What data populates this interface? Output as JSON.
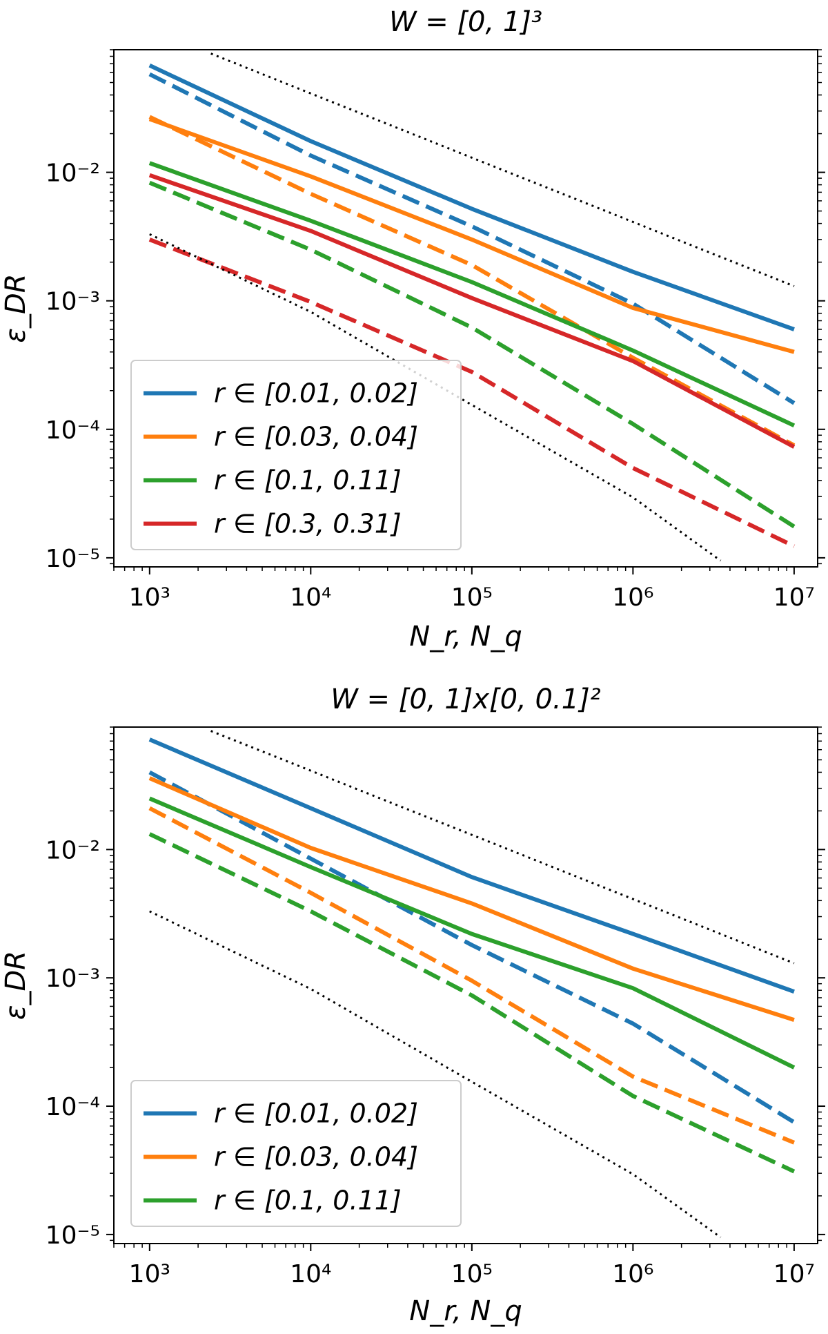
{
  "charts": [
    {
      "title": "W = [0, 1]³",
      "xlabel": "N_r, N_q",
      "ylabel": "ε_DR",
      "legend": [
        {
          "label": "r ∈ [0.01, 0.02]",
          "color": "#1f77b4"
        },
        {
          "label": "r ∈ [0.03, 0.04]",
          "color": "#ff7f0e"
        },
        {
          "label": "r ∈ [0.1, 0.11]",
          "color": "#2ca02c"
        },
        {
          "label": "r ∈ [0.3, 0.31]",
          "color": "#d62728"
        }
      ]
    },
    {
      "title": "W = [0, 1]x[0, 0.1]²",
      "xlabel": "N_r, N_q",
      "ylabel": "ε_DR",
      "legend": [
        {
          "label": "r ∈ [0.01, 0.02]",
          "color": "#1f77b4"
        },
        {
          "label": "r ∈ [0.03, 0.04]",
          "color": "#ff7f0e"
        },
        {
          "label": "r ∈ [0.1, 0.11]",
          "color": "#2ca02c"
        }
      ]
    }
  ],
  "chart_data": [
    {
      "type": "line",
      "scale": "log-log",
      "title": "W = [0, 1]³",
      "xlabel": "N_r, N_q",
      "ylabel": "ε_DR",
      "xlim": [
        600,
        14000000
      ],
      "ylim": [
        8.5e-06,
        0.09
      ],
      "xticks": [
        1000,
        10000,
        100000,
        1000000,
        10000000
      ],
      "xtick_labels": [
        "10^3",
        "10^4",
        "10^5",
        "10^6",
        "10^7"
      ],
      "yticks": [
        1e-05,
        0.0001,
        0.001,
        0.01
      ],
      "ytick_labels": [
        "10^-5",
        "10^-4",
        "10^-3",
        "10^-2"
      ],
      "x": [
        1000,
        10000,
        100000,
        1000000,
        10000000
      ],
      "series": [
        {
          "name": "r ∈ [0.01, 0.02] (solid)",
          "color": "#1f77b4",
          "dash": "solid",
          "values": [
            0.068,
            0.0175,
            0.0052,
            0.00168,
            0.0006
          ]
        },
        {
          "name": "r ∈ [0.01, 0.02] (dashed)",
          "color": "#1f77b4",
          "dash": "dashed",
          "values": [
            0.058,
            0.0135,
            0.0038,
            0.00095,
            0.00016
          ]
        },
        {
          "name": "r ∈ [0.03, 0.04] (solid)",
          "color": "#ff7f0e",
          "dash": "solid",
          "values": [
            0.026,
            0.0093,
            0.003,
            0.00088,
            0.0004
          ]
        },
        {
          "name": "r ∈ [0.03, 0.04] (dashed)",
          "color": "#ff7f0e",
          "dash": "dashed",
          "values": [
            0.027,
            0.0068,
            0.0019,
            0.00036,
            7.5e-05
          ]
        },
        {
          "name": "r ∈ [0.1, 0.11] (solid)",
          "color": "#2ca02c",
          "dash": "solid",
          "values": [
            0.0118,
            0.0042,
            0.0014,
            0.00041,
            0.000107
          ]
        },
        {
          "name": "r ∈ [0.1, 0.11] (dashed)",
          "color": "#2ca02c",
          "dash": "dashed",
          "values": [
            0.0083,
            0.0025,
            0.00062,
            0.00011,
            1.75e-05
          ]
        },
        {
          "name": "r ∈ [0.3, 0.31] (solid)",
          "color": "#d62728",
          "dash": "solid",
          "values": [
            0.0095,
            0.0035,
            0.00105,
            0.00034,
            7.3e-05
          ]
        },
        {
          "name": "r ∈ [0.3, 0.31] (dashed)",
          "color": "#d62728",
          "dash": "dashed",
          "values": [
            0.003,
            0.00098,
            0.00028,
            5e-05,
            1.23e-05
          ]
        },
        {
          "name": "reference slope -1/2",
          "color": "#000000",
          "dash": "dotted",
          "x": [
            2400,
            10000000
          ],
          "values": [
            0.084,
            0.0013
          ]
        },
        {
          "name": "reference slope -1",
          "color": "#000000",
          "dash": "dotted",
          "x": [
            1000,
            10000,
            100000,
            1000000,
            3500000
          ],
          "values": [
            0.0033,
            0.00082,
            0.000155,
            2.95e-05,
            9.5e-06
          ]
        }
      ],
      "legend_position": "lower-left"
    },
    {
      "type": "line",
      "scale": "log-log",
      "title": "W = [0, 1]x[0, 0.1]²",
      "xlabel": "N_r, N_q",
      "ylabel": "ε_DR",
      "xlim": [
        600,
        14000000
      ],
      "ylim": [
        8.5e-06,
        0.09
      ],
      "xticks": [
        1000,
        10000,
        100000,
        1000000,
        10000000
      ],
      "xtick_labels": [
        "10^3",
        "10^4",
        "10^5",
        "10^6",
        "10^7"
      ],
      "yticks": [
        1e-05,
        0.0001,
        0.001,
        0.01
      ],
      "ytick_labels": [
        "10^-5",
        "10^-4",
        "10^-3",
        "10^-2"
      ],
      "x": [
        1000,
        10000,
        100000,
        1000000,
        10000000
      ],
      "series": [
        {
          "name": "r ∈ [0.01, 0.02] (solid)",
          "color": "#1f77b4",
          "dash": "solid",
          "values": [
            0.072,
            0.021,
            0.0061,
            0.0022,
            0.00078
          ]
        },
        {
          "name": "r ∈ [0.01, 0.02] (dashed)",
          "color": "#1f77b4",
          "dash": "dashed",
          "values": [
            0.04,
            0.0085,
            0.0018,
            0.00044,
            7.5e-05
          ]
        },
        {
          "name": "r ∈ [0.03, 0.04] (solid)",
          "color": "#ff7f0e",
          "dash": "solid",
          "values": [
            0.036,
            0.0103,
            0.0038,
            0.00118,
            0.00047
          ]
        },
        {
          "name": "r ∈ [0.03, 0.04] (dashed)",
          "color": "#ff7f0e",
          "dash": "dashed",
          "values": [
            0.021,
            0.0046,
            0.00095,
            0.00017,
            5.2e-05
          ]
        },
        {
          "name": "r ∈ [0.1, 0.11] (solid)",
          "color": "#2ca02c",
          "dash": "solid",
          "values": [
            0.025,
            0.0073,
            0.0022,
            0.00083,
            0.0002
          ]
        },
        {
          "name": "r ∈ [0.1, 0.11] (dashed)",
          "color": "#2ca02c",
          "dash": "dashed",
          "values": [
            0.0132,
            0.0033,
            0.00073,
            0.00012,
            3.1e-05
          ]
        },
        {
          "name": "reference slope -1/2",
          "color": "#000000",
          "dash": "dotted",
          "x": [
            2400,
            10000000
          ],
          "values": [
            0.084,
            0.0013
          ]
        },
        {
          "name": "reference slope -1",
          "color": "#000000",
          "dash": "dotted",
          "x": [
            1000,
            10000,
            100000,
            1000000,
            3500000
          ],
          "values": [
            0.0033,
            0.00082,
            0.000155,
            2.95e-05,
            9.5e-06
          ]
        }
      ],
      "legend_position": "lower-left"
    }
  ]
}
